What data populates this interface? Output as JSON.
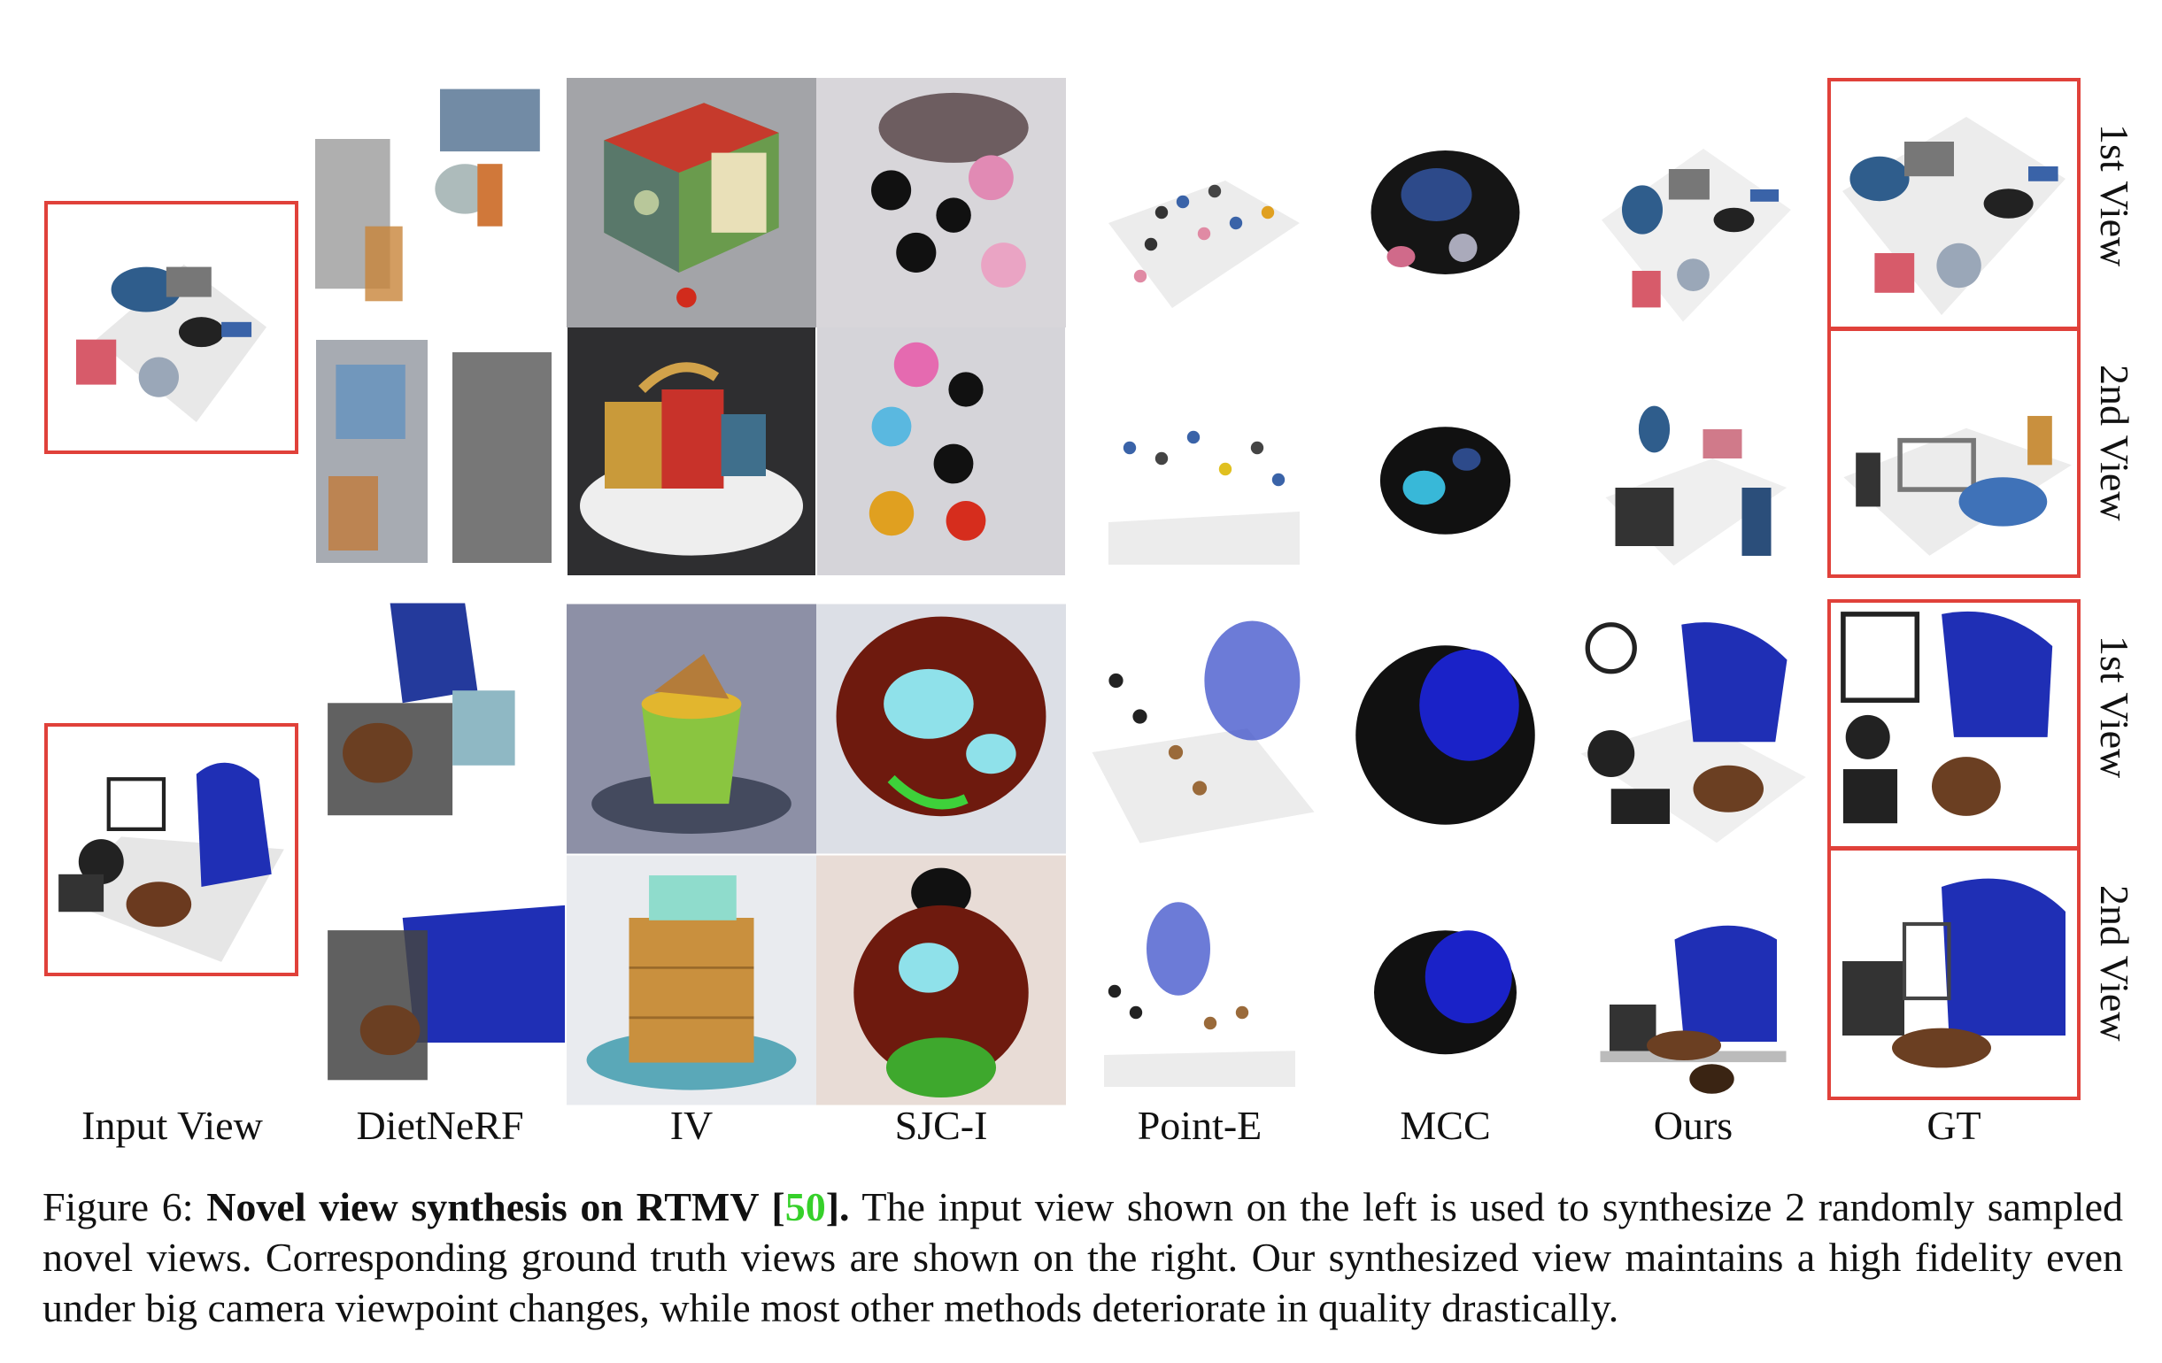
{
  "columns": [
    {
      "label": "Input View"
    },
    {
      "label": "DietNeRF"
    },
    {
      "label": "IV"
    },
    {
      "label": "SJC-I"
    },
    {
      "label": "Point-E"
    },
    {
      "label": "MCC"
    },
    {
      "label": "Ours"
    },
    {
      "label": "GT"
    }
  ],
  "view_labels": {
    "top_first": "1st View",
    "top_second": "2nd View",
    "bottom_first": "1st View",
    "bottom_second": "2nd View"
  },
  "caption": {
    "prefix": "Figure 6: ",
    "title": "Novel view synthesis on RTMV [",
    "cite": "50",
    "title_end": "].",
    "body": " The input view shown on the left is used to synthesize 2 randomly sampled novel views. Corresponding ground truth views are shown on the right. Our synthesized view maintains a high fidelity even under big camera viewpoint changes, while most other methods deteriorate in quality drastically."
  },
  "colors": {
    "highlight_box": "#e0413a",
    "citation": "#36d02a"
  }
}
